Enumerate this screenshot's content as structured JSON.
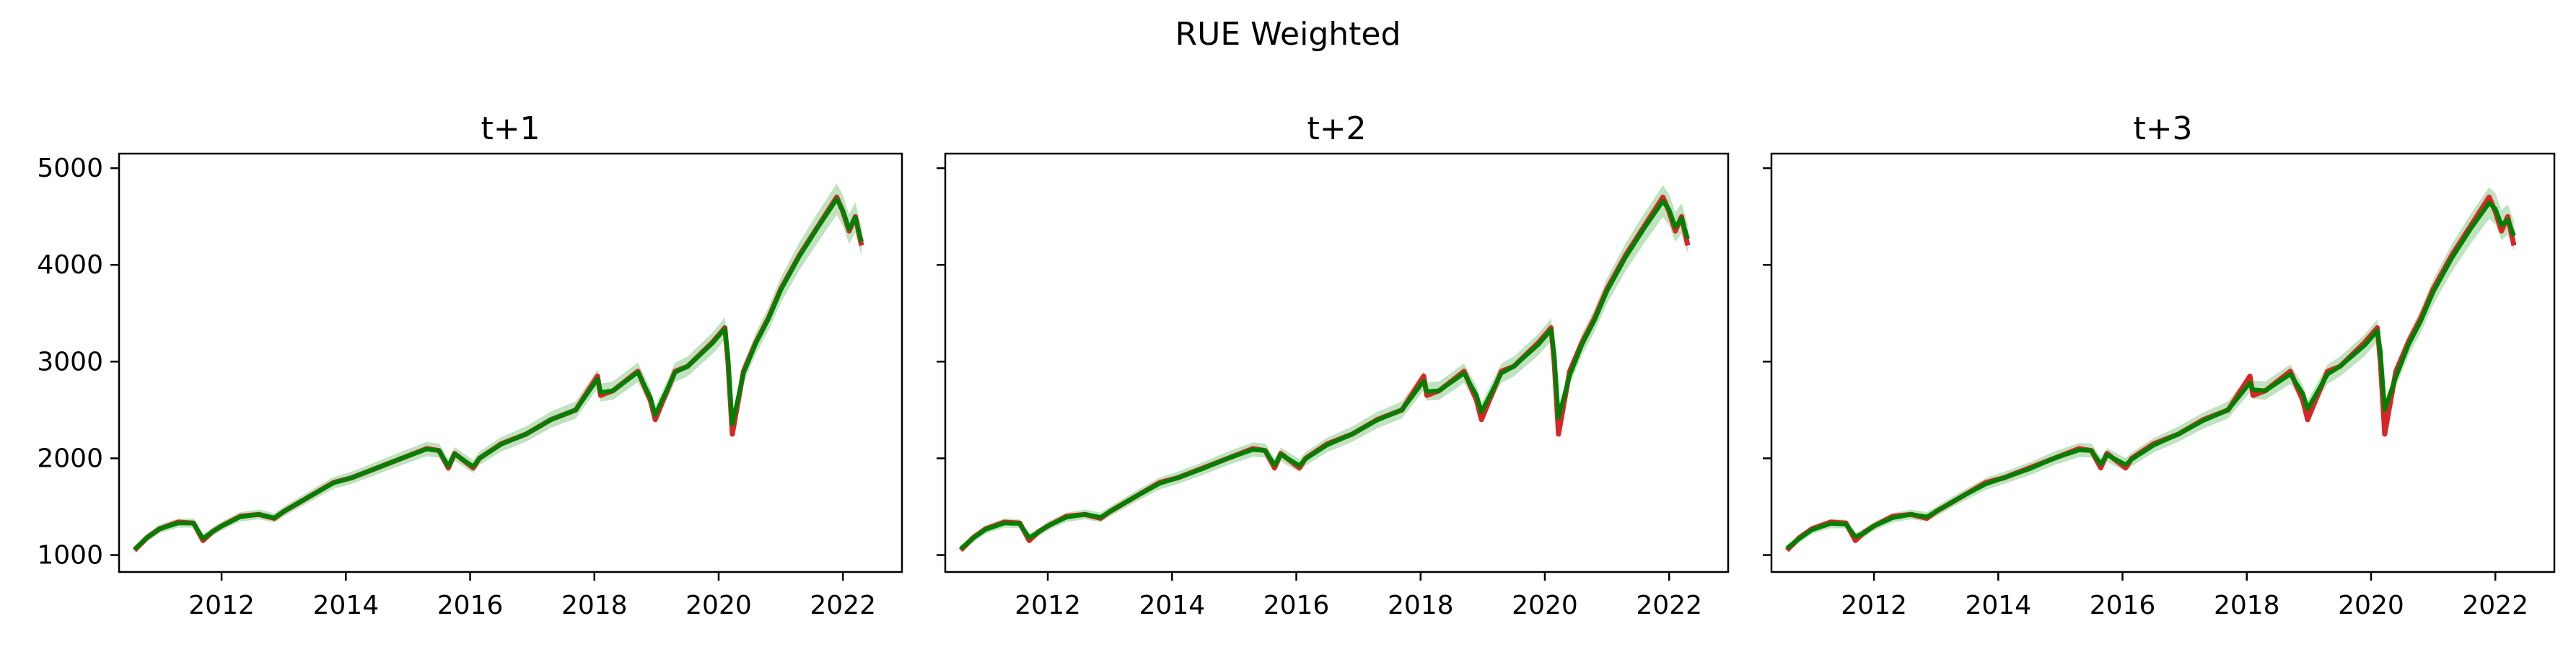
{
  "figure": {
    "suptitle": "RUE Weighted"
  },
  "colors": {
    "actual": "#d62728",
    "predicted": "#008000",
    "band": "#2ca02c"
  },
  "chart_data": [
    {
      "type": "line",
      "title": "t+1",
      "xlabel": "",
      "ylabel": "",
      "xlim": [
        2010.35,
        2022.95
      ],
      "ylim": [
        825,
        5150
      ],
      "xticks": [
        "2012",
        "2014",
        "2016",
        "2018",
        "2020",
        "2022"
      ],
      "yticks": [
        "1000",
        "2000",
        "3000",
        "4000",
        "5000"
      ],
      "grid": false,
      "series": [
        {
          "role": "actual",
          "x": [
            2010.6,
            2010.8,
            2011.0,
            2011.3,
            2011.55,
            2011.7,
            2011.85,
            2012.0,
            2012.3,
            2012.6,
            2012.85,
            2013.0,
            2013.4,
            2013.8,
            2014.1,
            2014.5,
            2014.9,
            2015.3,
            2015.5,
            2015.65,
            2015.75,
            2016.05,
            2016.15,
            2016.5,
            2016.9,
            2017.3,
            2017.7,
            2018.05,
            2018.1,
            2018.3,
            2018.7,
            2018.9,
            2018.98,
            2019.3,
            2019.5,
            2019.9,
            2020.1,
            2020.15,
            2020.22,
            2020.4,
            2020.6,
            2020.8,
            2021.0,
            2021.3,
            2021.6,
            2021.9,
            2022.0,
            2022.1,
            2022.2,
            2022.3
          ],
          "y": [
            1050,
            1180,
            1270,
            1340,
            1330,
            1150,
            1240,
            1300,
            1400,
            1420,
            1380,
            1450,
            1600,
            1750,
            1800,
            1900,
            2000,
            2100,
            2080,
            1900,
            2050,
            1900,
            2000,
            2150,
            2250,
            2400,
            2500,
            2850,
            2650,
            2700,
            2900,
            2600,
            2400,
            2900,
            2950,
            3200,
            3350,
            3000,
            2250,
            2900,
            3200,
            3450,
            3750,
            4100,
            4400,
            4700,
            4550,
            4350,
            4500,
            4200
          ]
        },
        {
          "role": "predicted",
          "x": [
            2010.6,
            2010.8,
            2011.0,
            2011.3,
            2011.55,
            2011.7,
            2011.85,
            2012.0,
            2012.3,
            2012.6,
            2012.85,
            2013.0,
            2013.4,
            2013.8,
            2014.1,
            2014.5,
            2014.9,
            2015.3,
            2015.5,
            2015.65,
            2015.75,
            2016.05,
            2016.15,
            2016.5,
            2016.9,
            2017.3,
            2017.7,
            2018.05,
            2018.1,
            2018.3,
            2018.7,
            2018.9,
            2018.98,
            2019.3,
            2019.5,
            2019.9,
            2020.1,
            2020.15,
            2020.22,
            2020.4,
            2020.6,
            2020.8,
            2021.0,
            2021.3,
            2021.6,
            2021.9,
            2022.0,
            2022.1,
            2022.2,
            2022.3
          ],
          "y": [
            1060,
            1180,
            1270,
            1330,
            1330,
            1170,
            1240,
            1300,
            1395,
            1420,
            1385,
            1450,
            1600,
            1745,
            1800,
            1900,
            2000,
            2095,
            2080,
            1920,
            2045,
            1915,
            2000,
            2145,
            2250,
            2400,
            2500,
            2820,
            2680,
            2700,
            2890,
            2630,
            2450,
            2890,
            2950,
            3190,
            3340,
            3050,
            2350,
            2880,
            3190,
            3440,
            3740,
            4090,
            4390,
            4680,
            4560,
            4370,
            4490,
            4240
          ]
        }
      ]
    },
    {
      "type": "line",
      "title": "t+2",
      "xlabel": "",
      "ylabel": "",
      "xlim": [
        2010.35,
        2022.95
      ],
      "ylim": [
        825,
        5150
      ],
      "xticks": [
        "2012",
        "2014",
        "2016",
        "2018",
        "2020",
        "2022"
      ],
      "yticks": [],
      "grid": false,
      "series": [
        {
          "role": "actual",
          "x": [
            2010.6,
            2010.8,
            2011.0,
            2011.3,
            2011.55,
            2011.7,
            2011.85,
            2012.0,
            2012.3,
            2012.6,
            2012.85,
            2013.0,
            2013.4,
            2013.8,
            2014.1,
            2014.5,
            2014.9,
            2015.3,
            2015.5,
            2015.65,
            2015.75,
            2016.05,
            2016.15,
            2016.5,
            2016.9,
            2017.3,
            2017.7,
            2018.05,
            2018.1,
            2018.3,
            2018.7,
            2018.9,
            2018.98,
            2019.3,
            2019.5,
            2019.9,
            2020.1,
            2020.15,
            2020.22,
            2020.4,
            2020.6,
            2020.8,
            2021.0,
            2021.3,
            2021.6,
            2021.9,
            2022.0,
            2022.1,
            2022.2,
            2022.3
          ],
          "y": [
            1050,
            1180,
            1270,
            1340,
            1330,
            1150,
            1240,
            1300,
            1400,
            1420,
            1380,
            1450,
            1600,
            1750,
            1800,
            1900,
            2000,
            2100,
            2080,
            1900,
            2050,
            1900,
            2000,
            2150,
            2250,
            2400,
            2500,
            2850,
            2650,
            2700,
            2900,
            2600,
            2400,
            2900,
            2950,
            3200,
            3350,
            3000,
            2250,
            2900,
            3200,
            3450,
            3750,
            4100,
            4400,
            4700,
            4550,
            4350,
            4500,
            4200
          ]
        },
        {
          "role": "predicted",
          "x": [
            2010.6,
            2010.8,
            2011.0,
            2011.3,
            2011.55,
            2011.7,
            2011.85,
            2012.0,
            2012.3,
            2012.6,
            2012.85,
            2013.0,
            2013.4,
            2013.8,
            2014.1,
            2014.5,
            2014.9,
            2015.3,
            2015.5,
            2015.65,
            2015.75,
            2016.05,
            2016.15,
            2016.5,
            2016.9,
            2017.3,
            2017.7,
            2018.05,
            2018.1,
            2018.3,
            2018.7,
            2018.9,
            2018.98,
            2019.3,
            2019.5,
            2019.9,
            2020.1,
            2020.15,
            2020.22,
            2020.4,
            2020.6,
            2020.8,
            2021.0,
            2021.3,
            2021.6,
            2021.9,
            2022.0,
            2022.1,
            2022.2,
            2022.3
          ],
          "y": [
            1065,
            1175,
            1265,
            1330,
            1325,
            1180,
            1235,
            1300,
            1390,
            1420,
            1390,
            1450,
            1600,
            1740,
            1800,
            1895,
            2000,
            2090,
            2080,
            1930,
            2040,
            1925,
            1995,
            2140,
            2250,
            2395,
            2500,
            2800,
            2690,
            2700,
            2880,
            2650,
            2480,
            2880,
            2950,
            3180,
            3330,
            3080,
            2420,
            2860,
            3180,
            3430,
            3730,
            4080,
            4380,
            4660,
            4570,
            4390,
            4480,
            4270
          ]
        }
      ]
    },
    {
      "type": "line",
      "title": "t+3",
      "xlabel": "",
      "ylabel": "",
      "xlim": [
        2010.35,
        2022.95
      ],
      "ylim": [
        825,
        5150
      ],
      "xticks": [
        "2012",
        "2014",
        "2016",
        "2018",
        "2020",
        "2022"
      ],
      "yticks": [],
      "grid": false,
      "series": [
        {
          "role": "actual",
          "x": [
            2010.6,
            2010.8,
            2011.0,
            2011.3,
            2011.55,
            2011.7,
            2011.85,
            2012.0,
            2012.3,
            2012.6,
            2012.85,
            2013.0,
            2013.4,
            2013.8,
            2014.1,
            2014.5,
            2014.9,
            2015.3,
            2015.5,
            2015.65,
            2015.75,
            2016.05,
            2016.15,
            2016.5,
            2016.9,
            2017.3,
            2017.7,
            2018.05,
            2018.1,
            2018.3,
            2018.7,
            2018.9,
            2018.98,
            2019.3,
            2019.5,
            2019.9,
            2020.1,
            2020.15,
            2020.22,
            2020.4,
            2020.6,
            2020.8,
            2021.0,
            2021.3,
            2021.6,
            2021.9,
            2022.0,
            2022.1,
            2022.2,
            2022.3
          ],
          "y": [
            1050,
            1180,
            1270,
            1340,
            1330,
            1150,
            1240,
            1300,
            1400,
            1420,
            1380,
            1450,
            1600,
            1750,
            1800,
            1900,
            2000,
            2100,
            2080,
            1900,
            2050,
            1900,
            2000,
            2150,
            2250,
            2400,
            2500,
            2850,
            2650,
            2700,
            2900,
            2600,
            2400,
            2900,
            2950,
            3200,
            3350,
            3000,
            2250,
            2900,
            3200,
            3450,
            3750,
            4100,
            4400,
            4700,
            4550,
            4350,
            4500,
            4200
          ]
        },
        {
          "role": "predicted",
          "x": [
            2010.6,
            2010.8,
            2011.0,
            2011.3,
            2011.55,
            2011.7,
            2011.85,
            2012.0,
            2012.3,
            2012.6,
            2012.85,
            2013.0,
            2013.4,
            2013.8,
            2014.1,
            2014.5,
            2014.9,
            2015.3,
            2015.5,
            2015.65,
            2015.75,
            2016.05,
            2016.15,
            2016.5,
            2016.9,
            2017.3,
            2017.7,
            2018.05,
            2018.1,
            2018.3,
            2018.7,
            2018.9,
            2018.98,
            2019.3,
            2019.5,
            2019.9,
            2020.1,
            2020.15,
            2020.22,
            2020.4,
            2020.6,
            2020.8,
            2021.0,
            2021.3,
            2021.6,
            2021.9,
            2022.0,
            2022.1,
            2022.2,
            2022.3
          ],
          "y": [
            1070,
            1170,
            1260,
            1325,
            1320,
            1190,
            1230,
            1300,
            1385,
            1420,
            1395,
            1450,
            1600,
            1735,
            1800,
            1890,
            2000,
            2085,
            2080,
            1940,
            2035,
            1935,
            1990,
            2135,
            2250,
            2390,
            2500,
            2780,
            2710,
            2700,
            2870,
            2670,
            2510,
            2870,
            2950,
            3170,
            3320,
            3110,
            2500,
            2840,
            3170,
            3420,
            3720,
            4070,
            4370,
            4640,
            4580,
            4410,
            4470,
            4300
          ]
        }
      ]
    }
  ]
}
